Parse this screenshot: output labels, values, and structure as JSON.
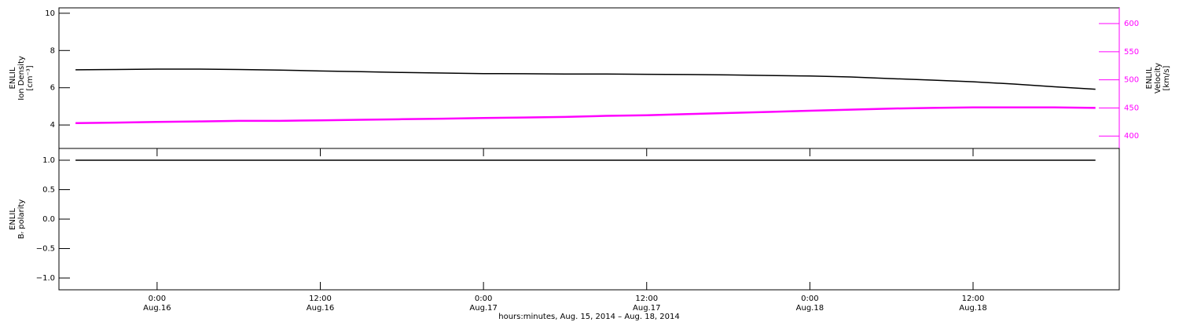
{
  "chart_data": [
    {
      "type": "line",
      "ylabel": [
        "ENLIL",
        "Ion Density",
        "[cm⁻³]"
      ],
      "y2label": [
        "ENLIL",
        "Velocity",
        "[km/s]"
      ],
      "xlim": [
        "2014-08-15T16:47",
        "2014-08-18T22:45"
      ],
      "ylim": [
        2.74,
        10.29
      ],
      "yticks": [
        4,
        6,
        8,
        10
      ],
      "y2lim": [
        378,
        628
      ],
      "y2ticks": [
        400,
        450,
        500,
        550,
        600
      ],
      "x": [
        "2014-08-15T18:00",
        "2014-08-15T21:00",
        "2014-08-16T00:00",
        "2014-08-16T03:00",
        "2014-08-16T06:00",
        "2014-08-16T09:00",
        "2014-08-16T12:00",
        "2014-08-16T15:00",
        "2014-08-16T18:00",
        "2014-08-16T21:00",
        "2014-08-17T00:00",
        "2014-08-17T03:00",
        "2014-08-17T06:00",
        "2014-08-17T09:00",
        "2014-08-17T12:00",
        "2014-08-17T15:00",
        "2014-08-17T18:00",
        "2014-08-17T21:00",
        "2014-08-18T00:00",
        "2014-08-18T03:00",
        "2014-08-18T06:00",
        "2014-08-18T09:00",
        "2014-08-18T12:00",
        "2014-08-18T15:00",
        "2014-08-18T18:00",
        "2014-08-18T21:00"
      ],
      "series": [
        {
          "color": "#000000",
          "axis": "y",
          "values": [
            6.96,
            6.98,
            7.0,
            7.0,
            6.98,
            6.95,
            6.9,
            6.86,
            6.82,
            6.79,
            6.76,
            6.75,
            6.74,
            6.74,
            6.72,
            6.71,
            6.69,
            6.66,
            6.63,
            6.58,
            6.49,
            6.41,
            6.32,
            6.2,
            6.05,
            5.92
          ]
        },
        {
          "color": "#ff00ff",
          "axis": "y2",
          "values": [
            423,
            424,
            425,
            426,
            427,
            427,
            428,
            429,
            430,
            431,
            432,
            433,
            434,
            436,
            437,
            439,
            441,
            443,
            445,
            447,
            449,
            450,
            451,
            451,
            451,
            450
          ]
        }
      ]
    },
    {
      "type": "line",
      "ylabel": [
        "ENLIL",
        "Bᵣ polarity"
      ],
      "xlabel": "hours:minutes, Aug. 15, 2014 – Aug. 18, 2014",
      "xlim": [
        "2014-08-15T16:47",
        "2014-08-18T22:45"
      ],
      "xticks": [
        {
          "value": "2014-08-16T00:00",
          "label": "0:00",
          "sublabel": "Aug.16"
        },
        {
          "value": "2014-08-16T12:00",
          "label": "12:00",
          "sublabel": "Aug.16"
        },
        {
          "value": "2014-08-17T00:00",
          "label": "0:00",
          "sublabel": "Aug.17"
        },
        {
          "value": "2014-08-17T12:00",
          "label": "12:00",
          "sublabel": "Aug.17"
        },
        {
          "value": "2014-08-18T00:00",
          "label": "0:00",
          "sublabel": "Aug.18"
        },
        {
          "value": "2014-08-18T12:00",
          "label": "12:00",
          "sublabel": "Aug.18"
        }
      ],
      "ylim": [
        -1.2,
        1.2
      ],
      "yticks": [
        {
          "value": 1,
          "label": "1.0"
        },
        {
          "value": 0.5,
          "label": "0.5"
        },
        {
          "value": 0,
          "label": "0.0"
        },
        {
          "value": -0.5,
          "label": "−0.5"
        },
        {
          "value": -1,
          "label": "−1.0"
        }
      ],
      "x": [
        "2014-08-15T18:00",
        "2014-08-15T21:00",
        "2014-08-16T00:00",
        "2014-08-16T03:00",
        "2014-08-16T06:00",
        "2014-08-16T09:00",
        "2014-08-16T12:00",
        "2014-08-16T15:00",
        "2014-08-16T18:00",
        "2014-08-16T21:00",
        "2014-08-17T00:00",
        "2014-08-17T03:00",
        "2014-08-17T06:00",
        "2014-08-17T09:00",
        "2014-08-17T12:00",
        "2014-08-17T15:00",
        "2014-08-17T18:00",
        "2014-08-17T21:00",
        "2014-08-18T00:00",
        "2014-08-18T03:00",
        "2014-08-18T06:00",
        "2014-08-18T09:00",
        "2014-08-18T12:00",
        "2014-08-18T15:00",
        "2014-08-18T18:00",
        "2014-08-18T21:00"
      ],
      "series": [
        {
          "color": "#000000",
          "axis": "y",
          "values": [
            1,
            1,
            1,
            1,
            1,
            1,
            1,
            1,
            1,
            1,
            1,
            1,
            1,
            1,
            1,
            1,
            1,
            1,
            1,
            1,
            1,
            1,
            1,
            1,
            1,
            1
          ]
        }
      ]
    }
  ]
}
